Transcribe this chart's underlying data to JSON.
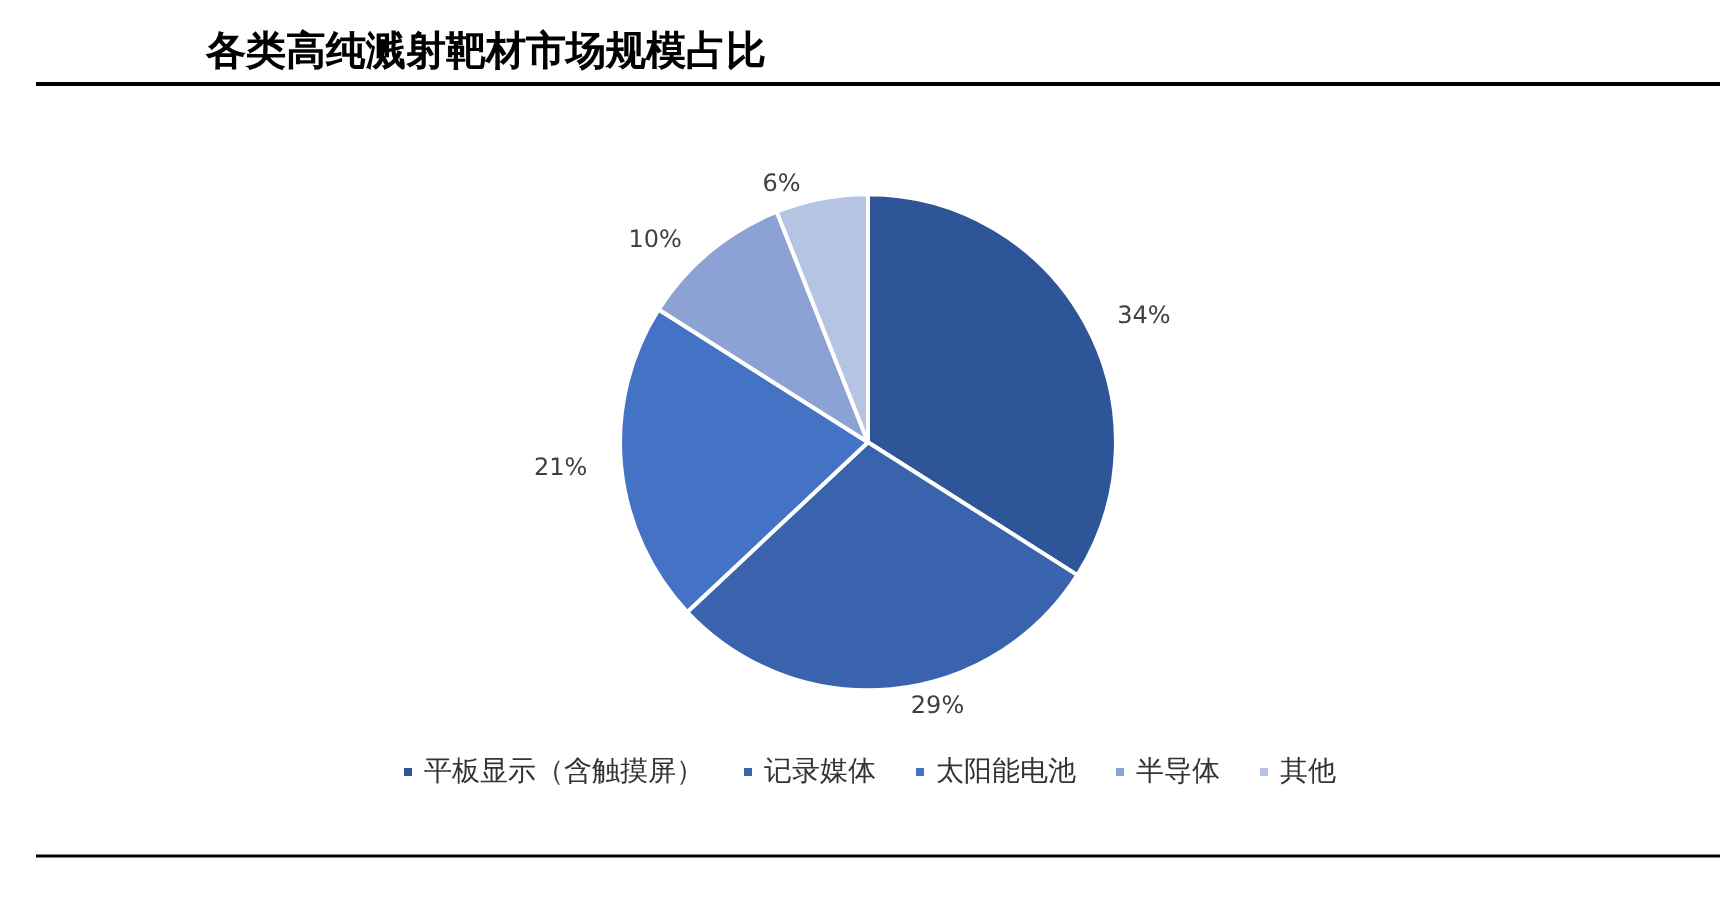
{
  "chart_data": {
    "type": "pie",
    "title": "各类高纯溅射靶材市场规模占比",
    "categories": [
      "平板显示（含触摸屏）",
      "记录媒体",
      "太阳能电池",
      "半导体",
      "其他"
    ],
    "values": [
      34,
      29,
      21,
      10,
      6
    ],
    "colors": [
      "#2e5597",
      "#3a63ae",
      "#4472c4",
      "#8da2d4",
      "#b6c4e4"
    ],
    "value_labels": [
      "34%",
      "29%",
      "21%",
      "10%",
      "6%"
    ],
    "legend": "bottom"
  }
}
